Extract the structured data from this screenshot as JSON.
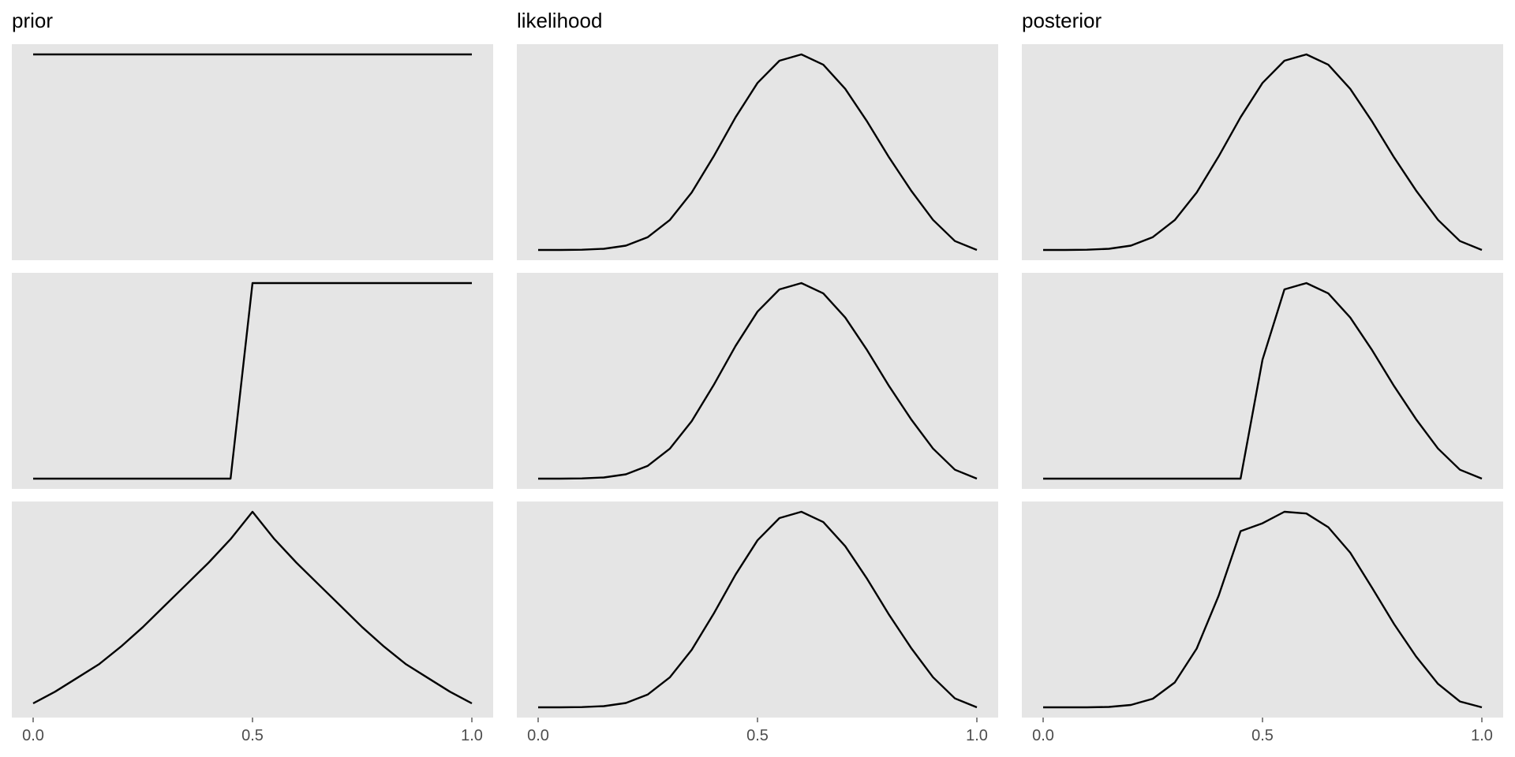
{
  "chart_data": {
    "type": "line",
    "columns": [
      "prior",
      "likelihood",
      "posterior"
    ],
    "xlim": [
      0,
      1
    ],
    "x_ticks": [
      0.0,
      0.5,
      1.0
    ],
    "x_tick_labels": [
      "0.0",
      "0.5",
      "1.0"
    ],
    "grid": false,
    "y_scale": "free (each panel normalized to its own maximum; no y axis shown)",
    "x": [
      0.0,
      0.05,
      0.1,
      0.15,
      0.2,
      0.25,
      0.3,
      0.35,
      0.4,
      0.45,
      0.5,
      0.55,
      0.6,
      0.65,
      0.7,
      0.75,
      0.8,
      0.85,
      0.9,
      0.95,
      1.0
    ],
    "rows": [
      {
        "prior": [
          1,
          1,
          1,
          1,
          1,
          1,
          1,
          1,
          1,
          1,
          1,
          1,
          1,
          1,
          1,
          1,
          1,
          1,
          1,
          1,
          1
        ],
        "likelihood": [
          0.0,
          0.0,
          0.001,
          0.006,
          0.022,
          0.065,
          0.151,
          0.29,
          0.472,
          0.67,
          0.843,
          0.955,
          0.987,
          0.935,
          0.813,
          0.648,
          0.467,
          0.3,
          0.152,
          0.045,
          0.0
        ],
        "posterior": [
          0.0,
          0.0,
          0.001,
          0.006,
          0.022,
          0.065,
          0.151,
          0.29,
          0.472,
          0.67,
          0.843,
          0.955,
          0.987,
          0.935,
          0.813,
          0.648,
          0.467,
          0.3,
          0.152,
          0.045,
          0.0
        ]
      },
      {
        "prior": [
          0,
          0,
          0,
          0,
          0,
          0,
          0,
          0,
          0,
          0,
          1,
          1,
          1,
          1,
          1,
          1,
          1,
          1,
          1,
          1,
          1
        ],
        "likelihood": [
          0.0,
          0.0,
          0.001,
          0.006,
          0.022,
          0.065,
          0.151,
          0.29,
          0.472,
          0.67,
          0.843,
          0.955,
          0.987,
          0.935,
          0.813,
          0.648,
          0.467,
          0.3,
          0.152,
          0.045,
          0.0
        ],
        "posterior": [
          0.0,
          0.0,
          0.0,
          0.0,
          0.0,
          0.0,
          0.0,
          0.0,
          0.0,
          0.0,
          0.6,
          0.955,
          0.987,
          0.935,
          0.813,
          0.648,
          0.467,
          0.3,
          0.152,
          0.045,
          0.0
        ]
      },
      {
        "prior": [
          0.02,
          0.08,
          0.15,
          0.22,
          0.31,
          0.41,
          0.52,
          0.63,
          0.74,
          0.86,
          1.0,
          0.86,
          0.74,
          0.63,
          0.52,
          0.41,
          0.31,
          0.22,
          0.15,
          0.08,
          0.02
        ],
        "likelihood": [
          0.0,
          0.0,
          0.001,
          0.006,
          0.022,
          0.065,
          0.151,
          0.29,
          0.472,
          0.67,
          0.843,
          0.955,
          0.987,
          0.935,
          0.813,
          0.648,
          0.467,
          0.3,
          0.152,
          0.045,
          0.0
        ],
        "posterior": [
          0.0,
          0.0,
          0.0,
          0.002,
          0.012,
          0.044,
          0.127,
          0.3,
          0.57,
          0.9,
          0.94,
          0.999,
          0.99,
          0.92,
          0.79,
          0.61,
          0.425,
          0.26,
          0.12,
          0.03,
          0.0
        ]
      }
    ]
  }
}
